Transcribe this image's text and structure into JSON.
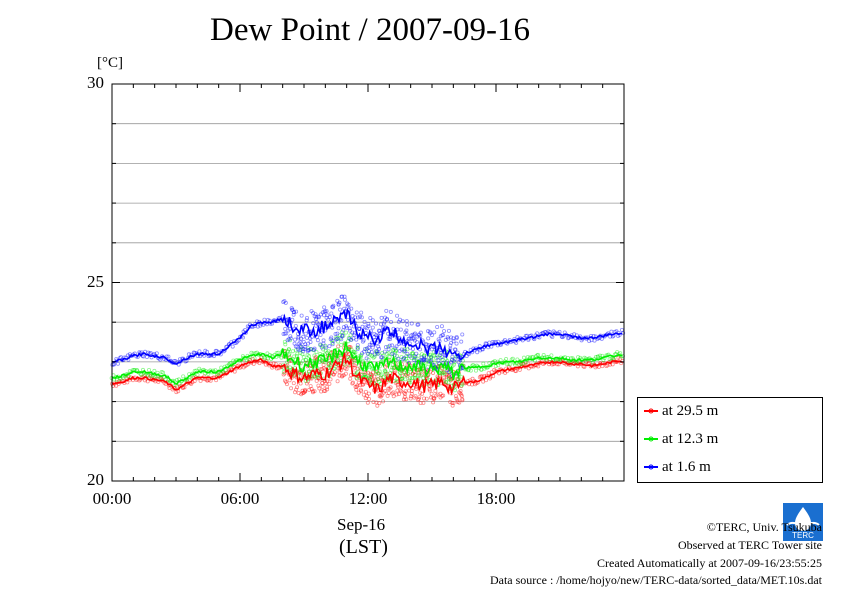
{
  "chart_data": {
    "type": "line",
    "title": "Dew Point / 2007-09-16",
    "ylabel": "[°C]",
    "ylim": [
      20,
      30
    ],
    "yticks": [
      "20",
      "25",
      "30"
    ],
    "x_ticks": [
      "00:00",
      "06:00",
      "12:00",
      "18:00"
    ],
    "x_date": "Sep-16",
    "x_timezone": "(LST)",
    "xlim_hours": [
      0,
      24
    ],
    "grid": true,
    "legend_position": "bottom-right",
    "x_hours": [
      0,
      0.5,
      1,
      1.5,
      2,
      2.5,
      3,
      3.5,
      4,
      4.5,
      5,
      5.5,
      6,
      6.5,
      7,
      7.5,
      8,
      8.5,
      9,
      9.5,
      10,
      10.5,
      11,
      11.5,
      12,
      12.5,
      13,
      13.5,
      14,
      14.5,
      15,
      15.5,
      16,
      16.5,
      17,
      17.5,
      18,
      18.5,
      19,
      19.5,
      20,
      20.5,
      21,
      21.5,
      22,
      22.5,
      23,
      23.5
    ],
    "series": [
      {
        "name": "at 29.5 m",
        "color": "#ff0000",
        "values": [
          22.45,
          22.5,
          22.6,
          22.6,
          22.55,
          22.5,
          22.3,
          22.45,
          22.6,
          22.6,
          22.6,
          22.75,
          22.9,
          23.0,
          23.05,
          22.9,
          22.9,
          22.7,
          22.6,
          22.7,
          22.7,
          22.9,
          23.1,
          22.6,
          22.4,
          22.3,
          22.6,
          22.5,
          22.5,
          22.4,
          22.4,
          22.5,
          22.3,
          22.5,
          22.5,
          22.6,
          22.75,
          22.8,
          22.85,
          22.9,
          22.95,
          23.0,
          23.0,
          22.95,
          22.95,
          22.9,
          22.95,
          23.0
        ]
      },
      {
        "name": "at 12.3 m",
        "color": "#00ee00",
        "values": [
          22.6,
          22.65,
          22.75,
          22.75,
          22.7,
          22.65,
          22.45,
          22.6,
          22.75,
          22.75,
          22.75,
          22.9,
          23.05,
          23.15,
          23.2,
          23.1,
          23.2,
          23.05,
          22.9,
          23.0,
          23.0,
          23.2,
          23.4,
          23.0,
          22.9,
          22.8,
          23.0,
          22.9,
          22.9,
          22.85,
          22.8,
          22.9,
          22.7,
          22.85,
          22.85,
          22.9,
          22.95,
          23.0,
          23.0,
          23.05,
          23.1,
          23.1,
          23.1,
          23.05,
          23.05,
          23.05,
          23.1,
          23.15
        ]
      },
      {
        "name": "at 1.6 m",
        "color": "#0000ff",
        "values": [
          23.0,
          23.05,
          23.15,
          23.2,
          23.15,
          23.1,
          22.95,
          23.1,
          23.2,
          23.2,
          23.2,
          23.4,
          23.6,
          23.9,
          24.0,
          24.0,
          24.1,
          23.9,
          23.8,
          23.8,
          23.9,
          24.0,
          24.2,
          23.8,
          23.6,
          23.6,
          23.8,
          23.6,
          23.5,
          23.4,
          23.3,
          23.4,
          23.1,
          23.2,
          23.3,
          23.4,
          23.45,
          23.5,
          23.55,
          23.6,
          23.65,
          23.7,
          23.7,
          23.65,
          23.6,
          23.6,
          23.65,
          23.7
        ]
      }
    ]
  },
  "credits": {
    "copyright": "©TERC, Univ. Tsukuba",
    "observed": "Observed at TERC Tower site",
    "created": "Created Automatically at 2007-09-16/23:55:25",
    "source": "Data source : /home/hojyo/new/TERC-data/sorted_data/MET.10s.dat"
  },
  "logo": {
    "name": "terc-logo-icon",
    "text": "TERC"
  }
}
